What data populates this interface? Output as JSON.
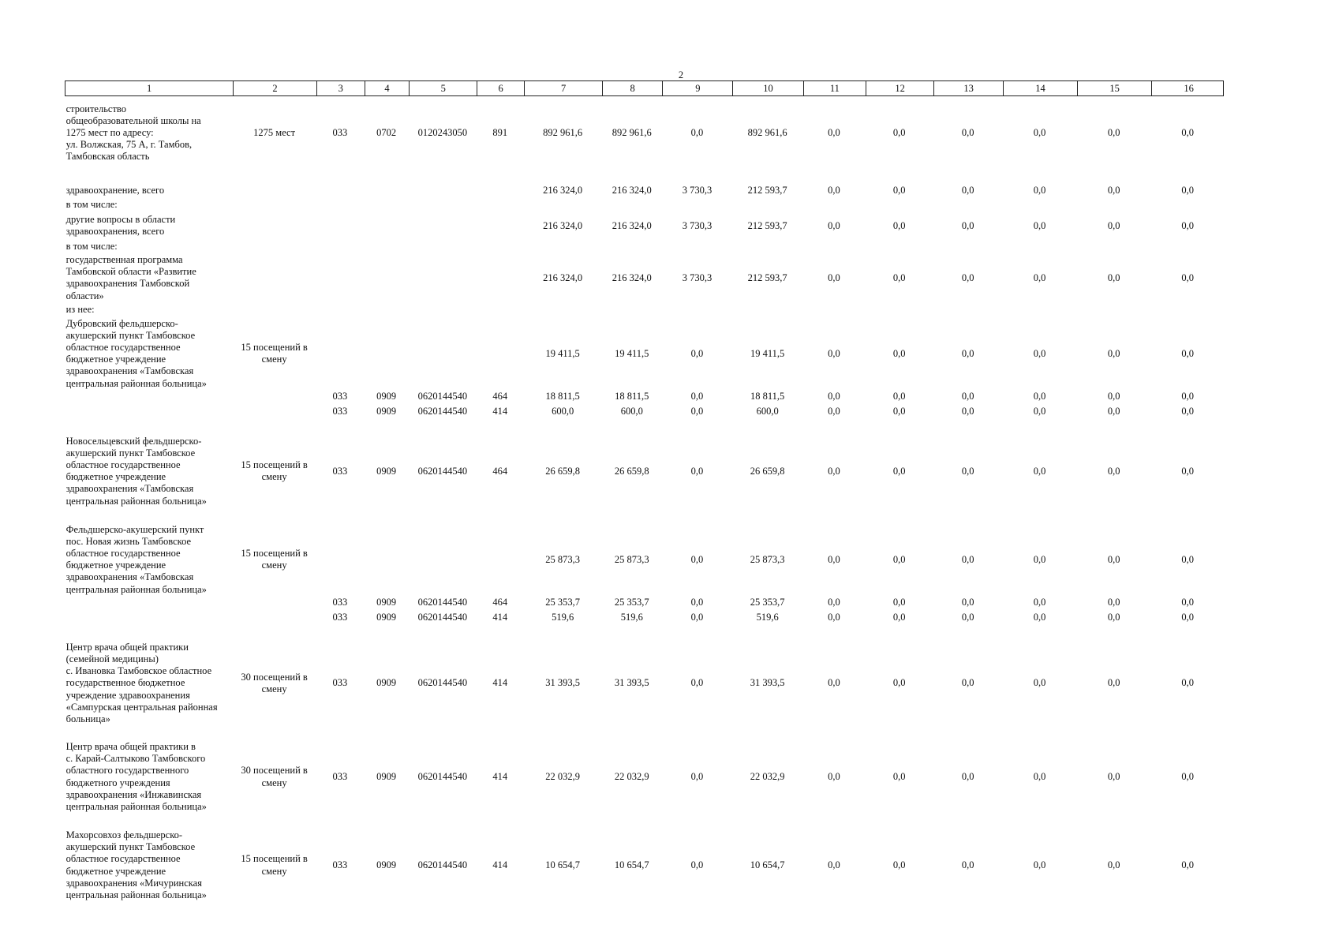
{
  "page_number": "2",
  "table": {
    "header": [
      "1",
      "2",
      "3",
      "4",
      "5",
      "6",
      "7",
      "8",
      "9",
      "10",
      "11",
      "12",
      "13",
      "14",
      "15",
      "16"
    ],
    "rows": [
      [
        "строительство\nобщеобразовательной школы на\n1275 мест по адресу:\nул. Волжская, 75 А, г. Тамбов,\nТамбовская область",
        "1275 мест",
        "033",
        "0702",
        "0120243050",
        "891",
        "892 961,6",
        "892 961,6",
        "0,0",
        "892 961,6",
        "0,0",
        "0,0",
        "0,0",
        "0,0",
        "0,0",
        "0,0"
      ],
      [
        "здравоохранение, всего",
        null,
        null,
        null,
        null,
        null,
        "216 324,0",
        "216 324,0",
        "3 730,3",
        "212 593,7",
        "0,0",
        "0,0",
        "0,0",
        "0,0",
        "0,0",
        "0,0"
      ],
      [
        "в том числе:",
        null,
        null,
        null,
        null,
        null,
        null,
        null,
        null,
        null,
        null,
        null,
        null,
        null,
        null,
        null
      ],
      [
        "другие вопросы в области\nздравоохранения, всего",
        null,
        null,
        null,
        null,
        null,
        "216 324,0",
        "216 324,0",
        "3 730,3",
        "212 593,7",
        "0,0",
        "0,0",
        "0,0",
        "0,0",
        "0,0",
        "0,0"
      ],
      [
        "в том числе:",
        null,
        null,
        null,
        null,
        null,
        null,
        null,
        null,
        null,
        null,
        null,
        null,
        null,
        null,
        null
      ],
      [
        "государственная программа\nТамбовской области «Развитие\nздравоохранения Тамбовской\nобласти»",
        null,
        null,
        null,
        null,
        null,
        "216 324,0",
        "216 324,0",
        "3 730,3",
        "212 593,7",
        "0,0",
        "0,0",
        "0,0",
        "0,0",
        "0,0",
        "0,0"
      ],
      [
        "из нее:",
        null,
        null,
        null,
        null,
        null,
        null,
        null,
        null,
        null,
        null,
        null,
        null,
        null,
        null,
        null
      ],
      [
        "Дубровский фельдшерско-\nакушерский пункт Тамбовское\nобластное государственное\nбюджетное учреждение\nздравоохранения «Тамбовская\nцентральная районная больница»",
        "15 посещений в\nсмену",
        null,
        null,
        null,
        null,
        "19 411,5",
        "19 411,5",
        "0,0",
        "19 411,5",
        "0,0",
        "0,0",
        "0,0",
        "0,0",
        "0,0",
        "0,0"
      ],
      [
        null,
        null,
        "033",
        "0909",
        "0620144540",
        "464",
        "18 811,5",
        "18 811,5",
        "0,0",
        "18 811,5",
        "0,0",
        "0,0",
        "0,0",
        "0,0",
        "0,0",
        "0,0"
      ],
      [
        null,
        null,
        "033",
        "0909",
        "0620144540",
        "414",
        "600,0",
        "600,0",
        "0,0",
        "600,0",
        "0,0",
        "0,0",
        "0,0",
        "0,0",
        "0,0",
        "0,0"
      ],
      [
        "Новосельцевский фельдшерско-\nакушерский пункт Тамбовское\nобластное государственное\nбюджетное учреждение\nздравоохранения «Тамбовская\nцентральная районная больница»",
        "15 посещений в\nсмену",
        "033",
        "0909",
        "0620144540",
        "464",
        "26 659,8",
        "26 659,8",
        "0,0",
        "26 659,8",
        "0,0",
        "0,0",
        "0,0",
        "0,0",
        "0,0",
        "0,0"
      ],
      [
        "Фельдшерско-акушерский пункт\nпос. Новая жизнь Тамбовское\nобластное государственное\nбюджетное учреждение\nздравоохранения «Тамбовская\nцентральная районная больница»",
        "15 посещений в\nсмену",
        null,
        null,
        null,
        null,
        "25 873,3",
        "25 873,3",
        "0,0",
        "25 873,3",
        "0,0",
        "0,0",
        "0,0",
        "0,0",
        "0,0",
        "0,0"
      ],
      [
        null,
        null,
        "033",
        "0909",
        "0620144540",
        "464",
        "25 353,7",
        "25 353,7",
        "0,0",
        "25 353,7",
        "0,0",
        "0,0",
        "0,0",
        "0,0",
        "0,0",
        "0,0"
      ],
      [
        null,
        null,
        "033",
        "0909",
        "0620144540",
        "414",
        "519,6",
        "519,6",
        "0,0",
        "519,6",
        "0,0",
        "0,0",
        "0,0",
        "0,0",
        "0,0",
        "0,0"
      ],
      [
        "Центр врача общей практики\n(семейной медицины)\nс. Ивановка Тамбовское областное\nгосударственное бюджетное\nучреждение здравоохранения\n«Сампурская центральная районная\nбольница»",
        "30 посещений в\nсмену",
        "033",
        "0909",
        "0620144540",
        "414",
        "31 393,5",
        "31 393,5",
        "0,0",
        "31 393,5",
        "0,0",
        "0,0",
        "0,0",
        "0,0",
        "0,0",
        "0,0"
      ],
      [
        "Центр врача общей практики в\nс. Карай-Салтыково Тамбовского\nобластного государственного\nбюджетного учреждения\nздравоохранения «Инжавинская\nцентральная районная больница»",
        "30 посещений в\nсмену",
        "033",
        "0909",
        "0620144540",
        "414",
        "22 032,9",
        "22 032,9",
        "0,0",
        "22 032,9",
        "0,0",
        "0,0",
        "0,0",
        "0,0",
        "0,0",
        "0,0"
      ],
      [
        "Махорсовхоз фельдшерско-\nакушерский пункт Тамбовское\nобластное государственное\nбюджетное учреждение\nздравоохранения «Мичуринская\nцентральная районная больница»",
        "15 посещений в\nсмену",
        "033",
        "0909",
        "0620144540",
        "414",
        "10 654,7",
        "10 654,7",
        "0,0",
        "10 654,7",
        "0,0",
        "0,0",
        "0,0",
        "0,0",
        "0,0",
        "0,0"
      ]
    ]
  }
}
